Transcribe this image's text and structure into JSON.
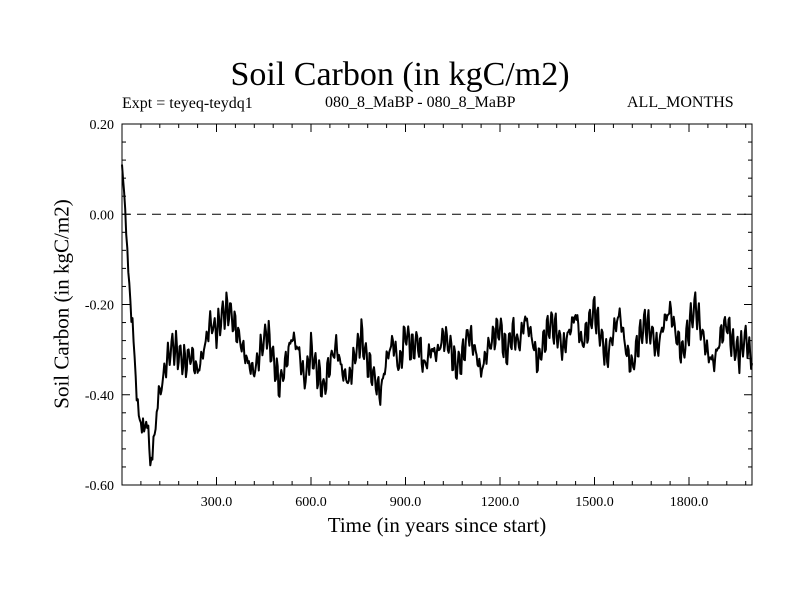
{
  "chart_data": {
    "type": "line",
    "title": "Soil Carbon (in kgC/m2)",
    "subtitle_left": "Expt = teyeq-teydq1",
    "subtitle_center": "080_8_MaBP - 080_8_MaBP",
    "subtitle_right": "ALL_MONTHS",
    "xlabel": "Time (in years since start)",
    "ylabel": "Soil Carbon (in kgC/m2)",
    "xlim": [
      0,
      2000
    ],
    "ylim": [
      -0.6,
      0.2
    ],
    "xticks": [
      300,
      600,
      900,
      1200,
      1500,
      1800
    ],
    "xtick_labels": [
      "300.0",
      "600.0",
      "900.0",
      "1200.0",
      "1500.0",
      "1800.0"
    ],
    "yticks": [
      0.2,
      0.0,
      -0.2,
      -0.4,
      -0.6
    ],
    "ytick_labels": [
      "0.20",
      "0.00",
      "-0.20",
      "-0.40",
      "-0.60"
    ],
    "reference_line": {
      "y": 0.0,
      "style": "dashed"
    },
    "series": [
      {
        "name": "Soil Carbon",
        "color": "#000000",
        "x": [
          0,
          10,
          20,
          30,
          40,
          50,
          60,
          70,
          80,
          90,
          100,
          110,
          120,
          140,
          160,
          180,
          200,
          220,
          240,
          260,
          280,
          300,
          320,
          340,
          360,
          380,
          400,
          420,
          440,
          460,
          480,
          500,
          520,
          540,
          560,
          580,
          600,
          620,
          640,
          660,
          680,
          700,
          720,
          740,
          760,
          780,
          800,
          820,
          840,
          860,
          880,
          900,
          920,
          940,
          960,
          980,
          1000,
          1020,
          1040,
          1060,
          1080,
          1100,
          1120,
          1140,
          1160,
          1180,
          1200,
          1220,
          1240,
          1260,
          1280,
          1300,
          1320,
          1340,
          1360,
          1380,
          1400,
          1420,
          1440,
          1460,
          1480,
          1500,
          1520,
          1540,
          1560,
          1580,
          1600,
          1620,
          1640,
          1660,
          1680,
          1700,
          1720,
          1740,
          1760,
          1780,
          1800,
          1820,
          1840,
          1860,
          1880,
          1900,
          1920,
          1940,
          1960,
          1980,
          2000
        ],
        "y": [
          0.11,
          0.02,
          -0.12,
          -0.24,
          -0.33,
          -0.41,
          -0.45,
          -0.5,
          -0.47,
          -0.53,
          -0.5,
          -0.46,
          -0.4,
          -0.33,
          -0.29,
          -0.31,
          -0.33,
          -0.31,
          -0.35,
          -0.3,
          -0.24,
          -0.26,
          -0.22,
          -0.21,
          -0.25,
          -0.29,
          -0.33,
          -0.35,
          -0.3,
          -0.26,
          -0.32,
          -0.38,
          -0.33,
          -0.27,
          -0.3,
          -0.37,
          -0.3,
          -0.35,
          -0.39,
          -0.33,
          -0.29,
          -0.35,
          -0.37,
          -0.31,
          -0.27,
          -0.33,
          -0.36,
          -0.4,
          -0.32,
          -0.28,
          -0.34,
          -0.26,
          -0.3,
          -0.28,
          -0.34,
          -0.3,
          -0.31,
          -0.27,
          -0.29,
          -0.34,
          -0.32,
          -0.26,
          -0.3,
          -0.35,
          -0.3,
          -0.27,
          -0.25,
          -0.31,
          -0.26,
          -0.29,
          -0.23,
          -0.27,
          -0.33,
          -0.28,
          -0.24,
          -0.26,
          -0.3,
          -0.26,
          -0.22,
          -0.29,
          -0.25,
          -0.21,
          -0.27,
          -0.32,
          -0.26,
          -0.22,
          -0.3,
          -0.34,
          -0.28,
          -0.24,
          -0.26,
          -0.3,
          -0.24,
          -0.21,
          -0.27,
          -0.31,
          -0.25,
          -0.2,
          -0.26,
          -0.31,
          -0.33,
          -0.27,
          -0.24,
          -0.29,
          -0.31,
          -0.27,
          -0.33
        ]
      }
    ]
  }
}
